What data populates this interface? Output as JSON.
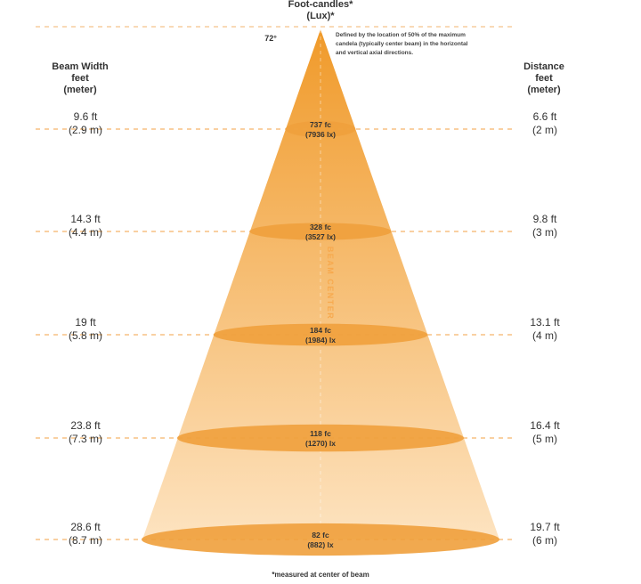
{
  "header": {
    "title_line1": "Foot-candles*",
    "title_line2": "(Lux)*",
    "angle": "72°",
    "note_line1": "Defined by the location of 50% of the maximum",
    "note_line2": "candela (typically center beam) in the horizontal",
    "note_line3": "and vertical axial directions."
  },
  "left_heading": [
    "Beam Width",
    "feet",
    "(meter)"
  ],
  "right_heading": [
    "Distance",
    "feet",
    "(meter)"
  ],
  "beam_label": "BEAM CENTER",
  "footnote": "*measured at center of beam",
  "colors": {
    "cone_top": "#f09a2a",
    "cone_bottom": "#fde3c0",
    "ellipse": "#f0a03c",
    "dash": "#f5b46a",
    "text": "#333333"
  },
  "levels": [
    {
      "beam_ft": "9.6 ft",
      "beam_m": "(2.9 m)",
      "fc": "737 fc",
      "lux": "(7936 lx)",
      "dist_ft": "6.6 ft",
      "dist_m": "(2 m)"
    },
    {
      "beam_ft": "14.3 ft",
      "beam_m": "(4.4 m)",
      "fc": "328 fc",
      "lux": "(3527 lx)",
      "dist_ft": "9.8 ft",
      "dist_m": "(3 m)"
    },
    {
      "beam_ft": "19 ft",
      "beam_m": "(5.8 m)",
      "fc": "184 fc",
      "lux": "(1984) lx",
      "dist_ft": "13.1 ft",
      "dist_m": "(4 m)"
    },
    {
      "beam_ft": "23.8 ft",
      "beam_m": "(7.3 m)",
      "fc": "118 fc",
      "lux": "(1270) lx",
      "dist_ft": "16.4 ft",
      "dist_m": "(5 m)"
    },
    {
      "beam_ft": "28.6 ft",
      "beam_m": "(8.7 m)",
      "fc": "82 fc",
      "lux": "(882) lx",
      "dist_ft": "19.7 ft",
      "dist_m": "(6 m)"
    }
  ]
}
